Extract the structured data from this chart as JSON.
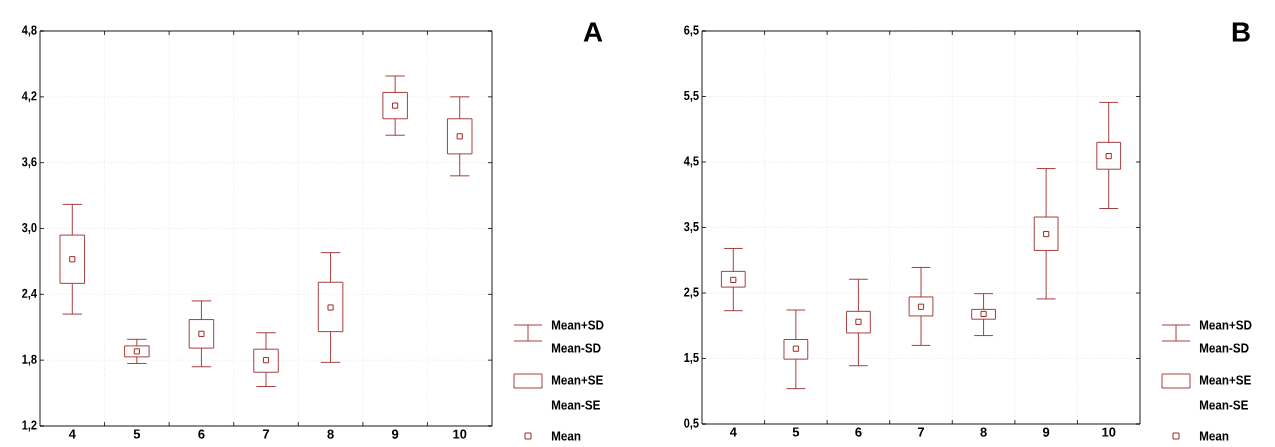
{
  "chart_data": [
    {
      "type": "box",
      "color": "#9b2a2a",
      "grid": true,
      "categories": [
        "4",
        "5",
        "6",
        "7",
        "8",
        "9",
        "10"
      ],
      "ylim": [
        1.2,
        4.8
      ],
      "yticks": [
        {
          "value": 1.2,
          "label": "1,2"
        },
        {
          "value": 1.8,
          "label": "1,8"
        },
        {
          "value": 2.4,
          "label": "2,4"
        },
        {
          "value": 3.0,
          "label": "3,0"
        },
        {
          "value": 3.6,
          "label": "3,6"
        },
        {
          "value": 4.2,
          "label": "4,2"
        },
        {
          "value": 4.8,
          "label": "4,8"
        }
      ],
      "boxes": [
        {
          "low": 2.22,
          "q1": 2.5,
          "median": 2.72,
          "q3": 2.94,
          "high": 3.22
        },
        {
          "low": 1.77,
          "q1": 1.83,
          "median": 1.88,
          "q3": 1.93,
          "high": 1.99
        },
        {
          "low": 1.74,
          "q1": 1.91,
          "median": 2.04,
          "q3": 2.17,
          "high": 2.34
        },
        {
          "low": 1.56,
          "q1": 1.69,
          "median": 1.8,
          "q3": 1.9,
          "high": 2.05
        },
        {
          "low": 1.78,
          "q1": 2.06,
          "median": 2.28,
          "q3": 2.51,
          "high": 2.78
        },
        {
          "low": 3.85,
          "q1": 4.0,
          "median": 4.12,
          "q3": 4.24,
          "high": 4.39
        },
        {
          "low": 3.48,
          "q1": 3.68,
          "median": 3.84,
          "q3": 4.0,
          "high": 4.2
        }
      ],
      "annotations": [
        "A",
        "Mean+SD",
        "Mean-SD",
        "Mean+SE",
        "Mean-SE",
        "Mean"
      ]
    },
    {
      "type": "box",
      "color": "#9b2a2a",
      "grid": true,
      "categories": [
        "4",
        "5",
        "6",
        "7",
        "8",
        "9",
        "10"
      ],
      "ylim": [
        0.5,
        6.5
      ],
      "yticks": [
        {
          "value": 0.5,
          "label": "0,5"
        },
        {
          "value": 1.5,
          "label": "1,5"
        },
        {
          "value": 2.5,
          "label": "2,5"
        },
        {
          "value": 3.5,
          "label": "3,5"
        },
        {
          "value": 4.5,
          "label": "4,5"
        },
        {
          "value": 5.5,
          "label": "5,5"
        },
        {
          "value": 6.5,
          "label": "6,5"
        }
      ],
      "boxes": [
        {
          "low": 2.23,
          "q1": 2.59,
          "median": 2.7,
          "q3": 2.83,
          "high": 3.18
        },
        {
          "low": 1.04,
          "q1": 1.49,
          "median": 1.65,
          "q3": 1.79,
          "high": 2.24
        },
        {
          "low": 1.39,
          "q1": 1.89,
          "median": 2.06,
          "q3": 2.22,
          "high": 2.71
        },
        {
          "low": 1.7,
          "q1": 2.15,
          "median": 2.29,
          "q3": 2.44,
          "high": 2.89
        },
        {
          "low": 1.85,
          "q1": 2.1,
          "median": 2.18,
          "q3": 2.25,
          "high": 2.49
        },
        {
          "low": 2.41,
          "q1": 3.15,
          "median": 3.4,
          "q3": 3.66,
          "high": 4.4
        },
        {
          "low": 3.79,
          "q1": 4.39,
          "median": 4.59,
          "q3": 4.8,
          "high": 5.41
        }
      ],
      "annotations": [
        "B",
        "Mean+SD",
        "Mean-SD",
        "Mean+SE",
        "Mean-SE",
        "Mean"
      ]
    }
  ]
}
